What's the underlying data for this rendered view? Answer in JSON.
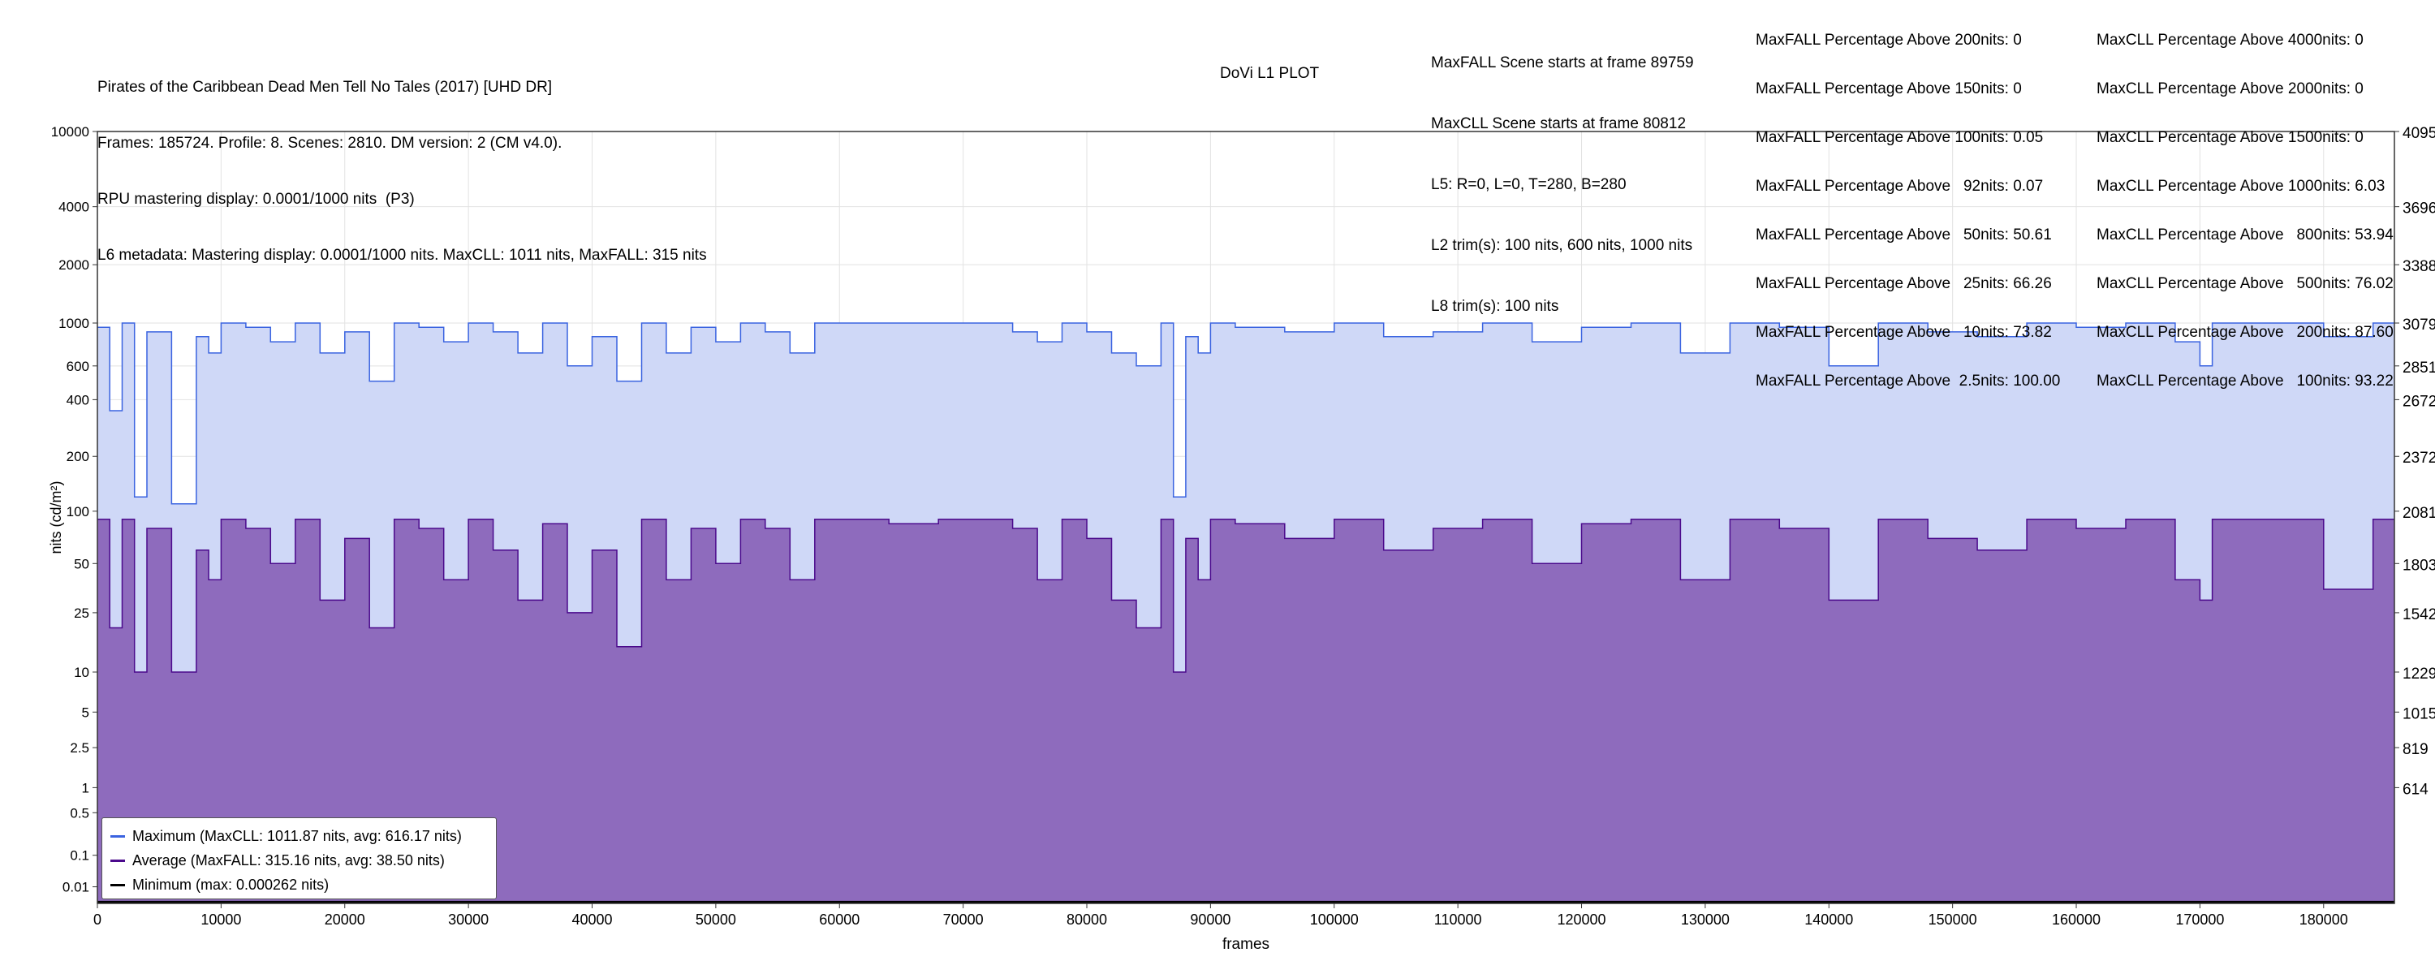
{
  "header": {
    "left_lines": [
      "Pirates of the Caribbean Dead Men Tell No Tales (2017) [UHD DR]",
      "Frames: 185724. Profile: 8. Scenes: 2810. DM version: 2 (CM v4.0).",
      "RPU mastering display: 0.0001/1000 nits  (P3)",
      "L6 metadata: Mastering display: 0.0001/1000 nits. MaxCLL: 1011 nits, MaxFALL: 315 nits"
    ],
    "plot_title": "DoVi L1 PLOT",
    "middle_lines": [
      "MaxFALL Scene starts at frame 89759",
      "MaxCLL Scene starts at frame 80812",
      "L5: R=0, L=0, T=280, B=280",
      "L2 trim(s): 100 nits, 600 nits, 1000 nits",
      "L8 trim(s): 100 nits"
    ],
    "maxfall_percentages": [
      "MaxFALL Percentage Above 200nits: 0",
      "MaxFALL Percentage Above 150nits: 0",
      "MaxFALL Percentage Above 100nits: 0.05",
      "MaxFALL Percentage Above   92nits: 0.07",
      "MaxFALL Percentage Above   50nits: 50.61",
      "MaxFALL Percentage Above   25nits: 66.26",
      "MaxFALL Percentage Above   10nits: 73.82",
      "MaxFALL Percentage Above  2.5nits: 100.00"
    ],
    "maxcll_percentages": [
      "MaxCLL Percentage Above 4000nits: 0",
      "MaxCLL Percentage Above 2000nits: 0",
      "MaxCLL Percentage Above 1500nits: 0",
      "MaxCLL Percentage Above 1000nits: 6.03",
      "MaxCLL Percentage Above   800nits: 53.94",
      "MaxCLL Percentage Above   500nits: 76.02",
      "MaxCLL Percentage Above   200nits: 87.60",
      "MaxCLL Percentage Above   100nits: 93.22"
    ]
  },
  "legend": {
    "max_label": "Maximum (MaxCLL: 1011.87 nits, avg: 616.17 nits)",
    "avg_label": "Average (MaxFALL: 315.16 nits, avg: 38.50 nits)",
    "min_label": "Minimum (max: 0.000262 nits)"
  },
  "colors": {
    "max_line": "#3a63e0",
    "max_fill": "#cfd8f7",
    "avg_line": "#4b0a8c",
    "avg_fill": "#8e6bbd",
    "min_line": "#000000",
    "grid": "#e2e2e2"
  },
  "chart_data": {
    "type": "area",
    "xlabel": "frames",
    "ylabel": "nits (cd/m²)",
    "y_scale": "PQ (perceptual quantizer)",
    "xlim": [
      0,
      185724
    ],
    "ylim": [
      0,
      10000
    ],
    "x_ticks": [
      0,
      10000,
      20000,
      30000,
      40000,
      50000,
      60000,
      70000,
      80000,
      90000,
      100000,
      110000,
      120000,
      130000,
      140000,
      150000,
      160000,
      170000,
      180000
    ],
    "y_ticks_left": [
      "0.01",
      "0.1",
      "0.5",
      "1",
      "2.5",
      "5",
      "10",
      "25",
      "50",
      "100",
      "200",
      "400",
      "600",
      "1000",
      "2000",
      "4000",
      "10000"
    ],
    "y_ticks_left_values": [
      0.01,
      0.1,
      0.5,
      1,
      2.5,
      5,
      10,
      25,
      50,
      100,
      200,
      400,
      600,
      1000,
      2000,
      4000,
      10000
    ],
    "y_ticks_right": [
      "614",
      "819",
      "1015",
      "1229",
      "1542",
      "1803",
      "2081",
      "2372",
      "2672",
      "2851",
      "3079",
      "3388",
      "3696",
      "4095"
    ],
    "y_ticks_right_values": [
      1,
      2.5,
      5,
      10,
      25,
      50,
      100,
      200,
      400,
      600,
      1000,
      2000,
      4000,
      10000
    ],
    "grid": true,
    "legend_position": "bottom-left",
    "series": [
      {
        "name": "Maximum (MaxCLL: 1011.87 nits, avg: 616.17 nits)",
        "frames": [
          0,
          1000,
          2000,
          3000,
          4000,
          6000,
          8000,
          9000,
          10000,
          12000,
          14000,
          16000,
          18000,
          20000,
          22000,
          24000,
          26000,
          28000,
          30000,
          32000,
          34000,
          36000,
          38000,
          40000,
          42000,
          44000,
          46000,
          48000,
          50000,
          52000,
          54000,
          56000,
          58000,
          60000,
          64000,
          68000,
          72000,
          74000,
          76000,
          78000,
          80000,
          82000,
          84000,
          86000,
          87000,
          88000,
          89000,
          90000,
          92000,
          96000,
          100000,
          104000,
          108000,
          112000,
          116000,
          120000,
          124000,
          128000,
          132000,
          136000,
          140000,
          144000,
          148000,
          152000,
          156000,
          160000,
          164000,
          168000,
          170000,
          171000,
          180000,
          182000,
          184000,
          185724
        ],
        "values": [
          950,
          350,
          1000,
          120,
          900,
          110,
          850,
          700,
          1000,
          950,
          800,
          1000,
          700,
          900,
          500,
          1000,
          950,
          800,
          1000,
          900,
          700,
          1000,
          600,
          850,
          500,
          1000,
          700,
          950,
          800,
          1000,
          900,
          700,
          1000,
          1000,
          1000,
          1000,
          1000,
          900,
          800,
          1000,
          900,
          700,
          600,
          1000,
          120,
          850,
          700,
          1000,
          950,
          900,
          1000,
          850,
          900,
          1000,
          800,
          950,
          1000,
          700,
          1000,
          950,
          600,
          1000,
          900,
          850,
          1000,
          950,
          1000,
          800,
          600,
          1000,
          850,
          850,
          1000,
          1000
        ]
      },
      {
        "name": "Average (MaxFALL: 315.16 nits, avg: 38.50 nits)",
        "frames": [
          0,
          1000,
          2000,
          3000,
          4000,
          6000,
          8000,
          9000,
          10000,
          12000,
          14000,
          16000,
          18000,
          20000,
          22000,
          24000,
          26000,
          28000,
          30000,
          32000,
          34000,
          36000,
          38000,
          40000,
          42000,
          44000,
          46000,
          48000,
          50000,
          52000,
          54000,
          56000,
          58000,
          60000,
          64000,
          68000,
          72000,
          74000,
          76000,
          78000,
          80000,
          82000,
          84000,
          86000,
          87000,
          88000,
          89000,
          90000,
          92000,
          96000,
          100000,
          104000,
          108000,
          112000,
          116000,
          120000,
          124000,
          128000,
          132000,
          136000,
          140000,
          144000,
          148000,
          152000,
          156000,
          160000,
          164000,
          168000,
          170000,
          171000,
          180000,
          182000,
          184000,
          185724
        ],
        "values": [
          90,
          20,
          90,
          10,
          80,
          10,
          60,
          40,
          90,
          80,
          50,
          90,
          30,
          70,
          20,
          90,
          80,
          40,
          90,
          60,
          30,
          85,
          25,
          60,
          15,
          90,
          40,
          80,
          50,
          90,
          80,
          40,
          90,
          90,
          85,
          90,
          90,
          80,
          40,
          90,
          70,
          30,
          20,
          90,
          10,
          70,
          40,
          90,
          85,
          70,
          90,
          60,
          80,
          90,
          50,
          85,
          90,
          40,
          90,
          80,
          30,
          90,
          70,
          60,
          90,
          80,
          90,
          40,
          30,
          90,
          35,
          35,
          90,
          90
        ]
      },
      {
        "name": "Minimum (max: 0.000262 nits)",
        "frames": [
          0,
          185724
        ],
        "values": [
          0.0001,
          0.0001
        ]
      }
    ]
  }
}
